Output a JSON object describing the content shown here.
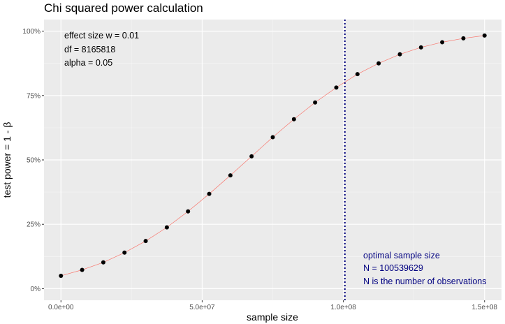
{
  "chart_data": {
    "type": "line",
    "title": "Chi squared power calculation",
    "xlabel": "sample size",
    "ylabel": "test power = 1 - β",
    "xlim": [
      -6000000,
      156000000
    ],
    "ylim": [
      -0.045,
      1.045
    ],
    "x_ticks": [
      {
        "value": 0,
        "label": "0.0e+00"
      },
      {
        "value": 50000000,
        "label": "5.0e+07"
      },
      {
        "value": 100000000,
        "label": "1.0e+08"
      },
      {
        "value": 150000000,
        "label": "1.5e+08"
      }
    ],
    "y_ticks": [
      {
        "value": 0,
        "label": "0%"
      },
      {
        "value": 0.25,
        "label": "25%"
      },
      {
        "value": 0.5,
        "label": "50%"
      },
      {
        "value": 0.75,
        "label": "75%"
      },
      {
        "value": 1.0,
        "label": "100%"
      }
    ],
    "grid": true,
    "line_color": "#f8766d",
    "point_color": "#000000",
    "vline_color": "#000080",
    "series": [
      {
        "x": [
          0,
          7500000,
          15000000,
          22500000,
          30000000,
          37500000,
          45000000,
          52500000,
          60000000,
          67500000,
          75000000,
          82500000,
          90000000,
          97500000,
          105000000,
          112500000,
          120000000,
          127500000,
          135000000,
          142500000,
          150000000
        ],
        "y": [
          0.05,
          0.073,
          0.102,
          0.14,
          0.185,
          0.238,
          0.3,
          0.368,
          0.44,
          0.514,
          0.588,
          0.658,
          0.723,
          0.781,
          0.833,
          0.875,
          0.91,
          0.937,
          0.957,
          0.972,
          0.983
        ]
      }
    ],
    "vline": {
      "x": 100539629
    },
    "annotations_left": [
      "effect size w = 0.01",
      "df = 8165818",
      "alpha = 0.05"
    ],
    "annotations_right": [
      "optimal sample size",
      "N = 100539629",
      "N is the number of observations"
    ]
  }
}
